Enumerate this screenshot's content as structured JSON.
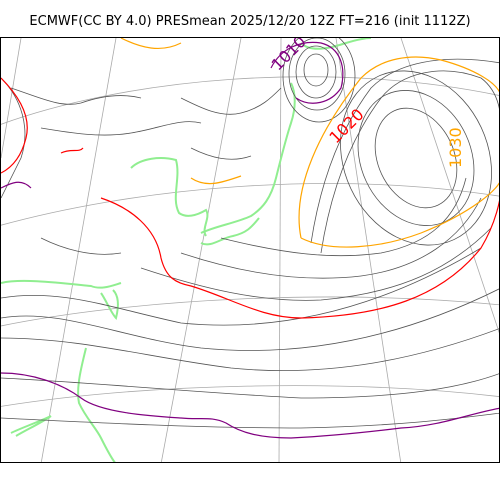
{
  "title": "ECMWF(CC BY 4.0) PRESmean 2025/12/20 12Z FT=216 (init 1112Z)",
  "contour_labels": {
    "c1010": "1010",
    "c1020": "1020",
    "c1030": "1030"
  },
  "colors": {
    "coastline": "#90ee90",
    "isobar": "#333333",
    "isobar_1020": "#ff0000",
    "isobar_1010": "#800080",
    "isobar_1030": "#ffa500",
    "gridline": "#aaaaaa"
  }
}
